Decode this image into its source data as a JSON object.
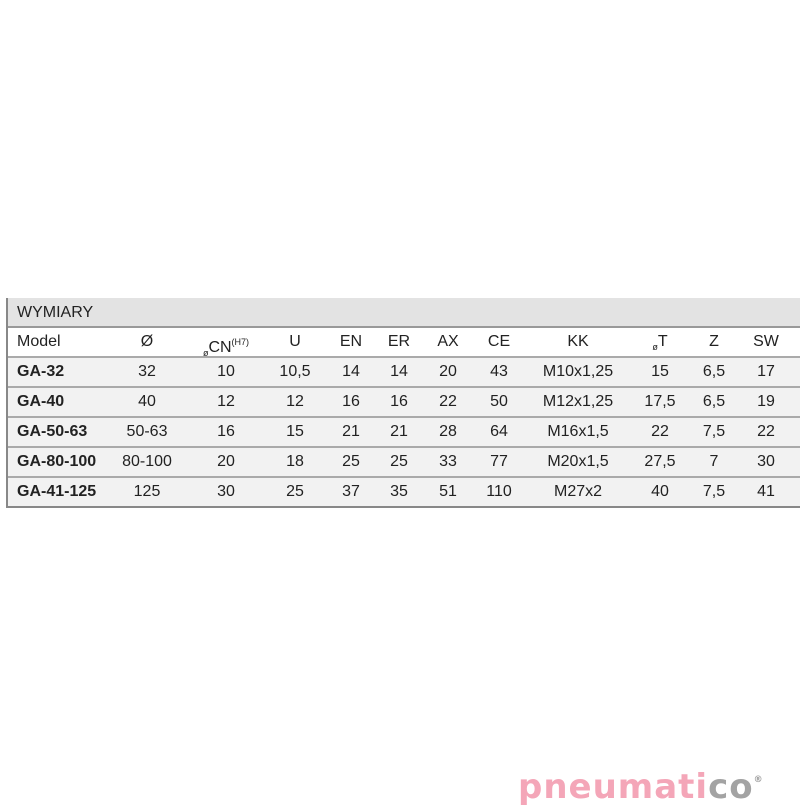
{
  "table": {
    "title": "WYMIARY",
    "headers": {
      "model": "Model",
      "d": "Ø",
      "cn_prefix": "ø",
      "cn": "CN",
      "cn_sup": "(H7)",
      "u": "U",
      "en": "EN",
      "er": "ER",
      "ax": "AX",
      "ce": "CE",
      "kk": "KK",
      "t_prefix": "ø",
      "t": "T",
      "z": "Z",
      "sw": "SW"
    },
    "rows": [
      [
        "GA-32",
        "32",
        "10",
        "10,5",
        "14",
        "14",
        "20",
        "43",
        "M10x1,25",
        "15",
        "6,5",
        "17"
      ],
      [
        "GA-40",
        "40",
        "12",
        "12",
        "16",
        "16",
        "22",
        "50",
        "M12x1,25",
        "17,5",
        "6,5",
        "19"
      ],
      [
        "GA-50-63",
        "50-63",
        "16",
        "15",
        "21",
        "21",
        "28",
        "64",
        "M16x1,5",
        "22",
        "7,5",
        "22"
      ],
      [
        "GA-80-100",
        "80-100",
        "20",
        "18",
        "25",
        "25",
        "33",
        "77",
        "M20x1,5",
        "27,5",
        "7",
        "30"
      ],
      [
        "GA-41-125",
        "125",
        "30",
        "25",
        "37",
        "35",
        "51",
        "110",
        "M27x2",
        "40",
        "7,5",
        "41"
      ]
    ]
  },
  "logo": {
    "text_main": "pneumati",
    "text_accent": "co",
    "registered": "®",
    "colors": {
      "main": "#f4a6b8",
      "accent": "#a3a3a3"
    }
  }
}
